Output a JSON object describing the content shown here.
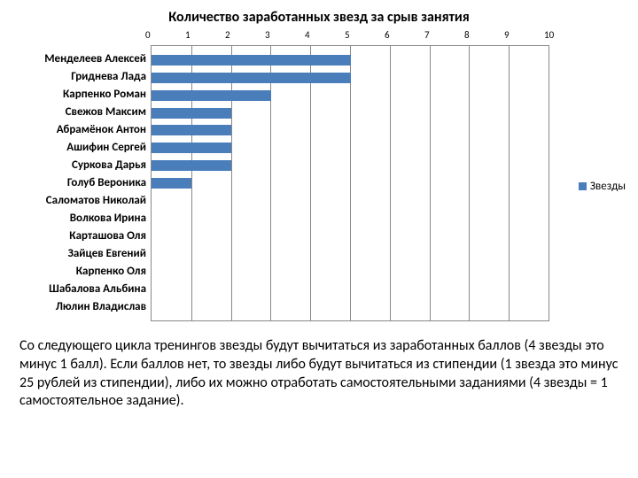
{
  "chart": {
    "type": "bar-horizontal",
    "title": "Количество заработанных звезд за срыв занятия",
    "title_fontsize": 16,
    "bar_color": "#4a7ebb",
    "gridline_color": "#888888",
    "background_color": "#ffffff",
    "xlim": [
      0,
      10
    ],
    "xtick_step": 1,
    "xticks": [
      "0",
      "1",
      "2",
      "3",
      "4",
      "5",
      "6",
      "7",
      "8",
      "9",
      "10"
    ],
    "label_fontsize": 13,
    "axis_fontsize": 11,
    "categories": [
      "Менделеев Алексей",
      "Гриднева Лада",
      "Карпенко Роман",
      "Свежов Максим",
      "Абрамёнок Антон",
      "Ашифин Сергей",
      "Суркова Дарья",
      "Голуб Вероника",
      "Саломатов Николай",
      "Волкова Ирина",
      "Карташова Оля",
      "Зайцев Евгений",
      "Карпенко Оля",
      "Шабалова Альбина",
      "Люлин Владислав"
    ],
    "values": [
      5,
      5,
      3,
      2,
      2,
      2,
      2,
      1,
      0,
      0,
      0,
      0,
      0,
      0,
      0
    ],
    "legend_label": "Звезды",
    "legend_marker_color": "#4a7ebb"
  },
  "body_text": "Со следующего цикла  тренингов звезды будут вычитаться из заработанных баллов (4 звезды это минус 1 балл). Если баллов нет, то звезды либо будут вычитаться из стипендии (1 звезда это минус 25 рублей из стипендии), либо их можно отработать самостоятельными заданиями (4 звезды = 1 самостоятельное задание).",
  "body_fontsize": 16
}
